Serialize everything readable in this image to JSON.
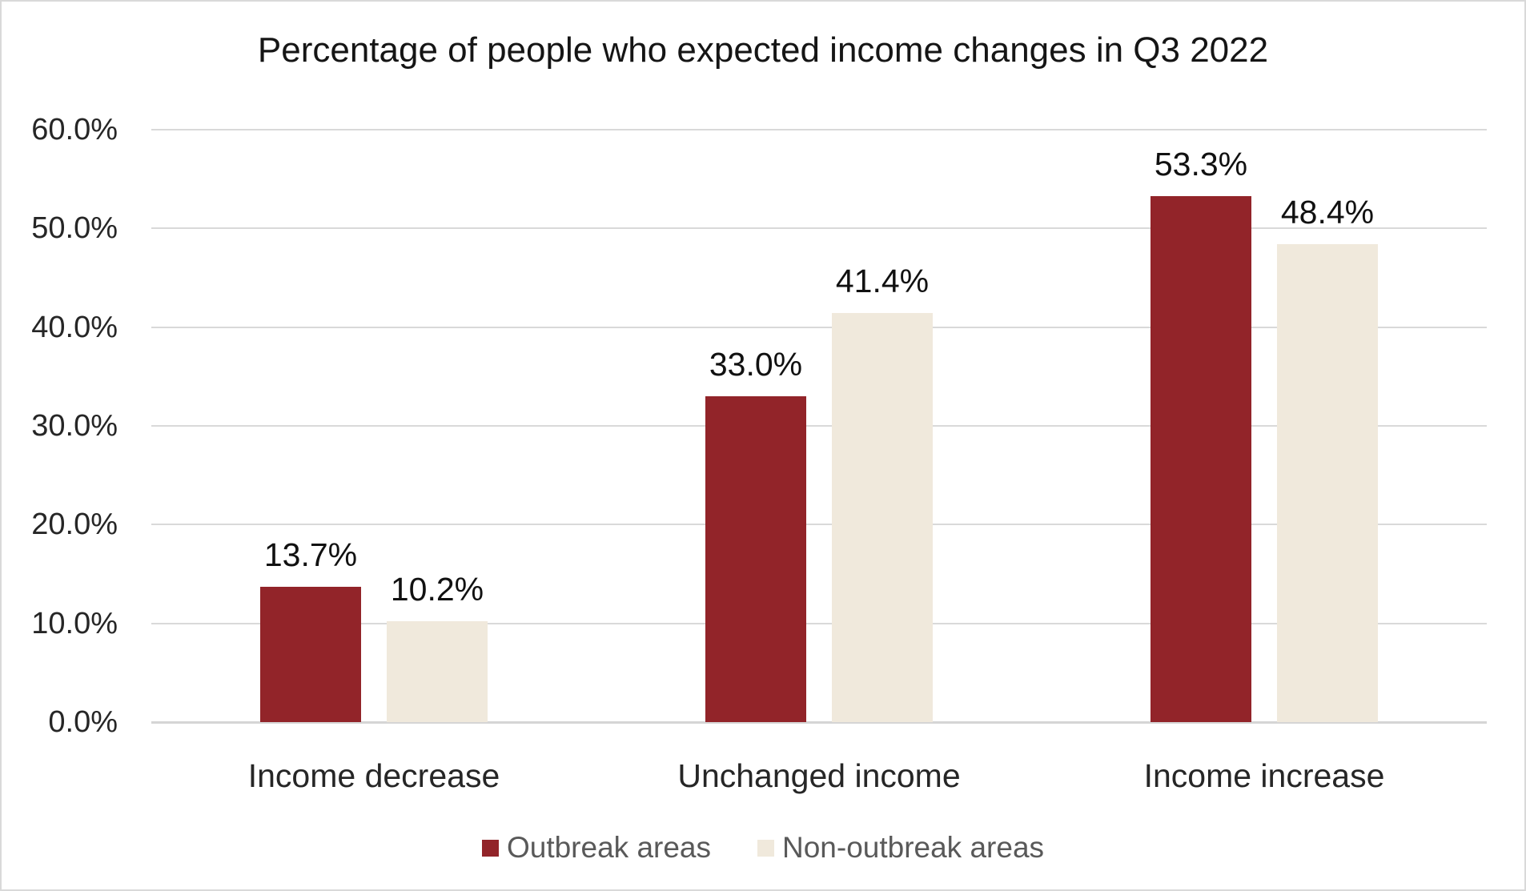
{
  "chart_data": {
    "type": "bar",
    "title": "Percentage of people who expected income changes in Q3 2022",
    "categories": [
      "Income decrease",
      "Unchanged income",
      "Income increase"
    ],
    "series": [
      {
        "name": "Outbreak areas",
        "color": "#922429",
        "values": [
          13.7,
          33.0,
          53.3
        ]
      },
      {
        "name": "Non-outbreak areas",
        "color": "#F0E9DC",
        "values": [
          10.2,
          41.4,
          48.4
        ]
      }
    ],
    "data_labels": {
      "Outbreak areas": [
        "13.7%",
        "33.0%",
        "53.3%"
      ],
      "Non-outbreak areas": [
        "10.2%",
        "41.4%",
        "48.4%"
      ]
    },
    "ylim": [
      0,
      60
    ],
    "yticks": [
      0,
      10,
      20,
      30,
      40,
      50,
      60
    ],
    "ytick_labels": [
      "0.0%",
      "10.0%",
      "20.0%",
      "30.0%",
      "40.0%",
      "50.0%",
      "60.0%"
    ],
    "grid": true,
    "legend_position": "bottom"
  },
  "colors": {
    "gridline": "#D9D9D9",
    "axis": "#D5D5D5",
    "frame_border": "#D9D9D9",
    "tick_text": "#262626",
    "data_label_text": "#111111",
    "legend_text": "#595959",
    "background": "#FFFFFF"
  }
}
